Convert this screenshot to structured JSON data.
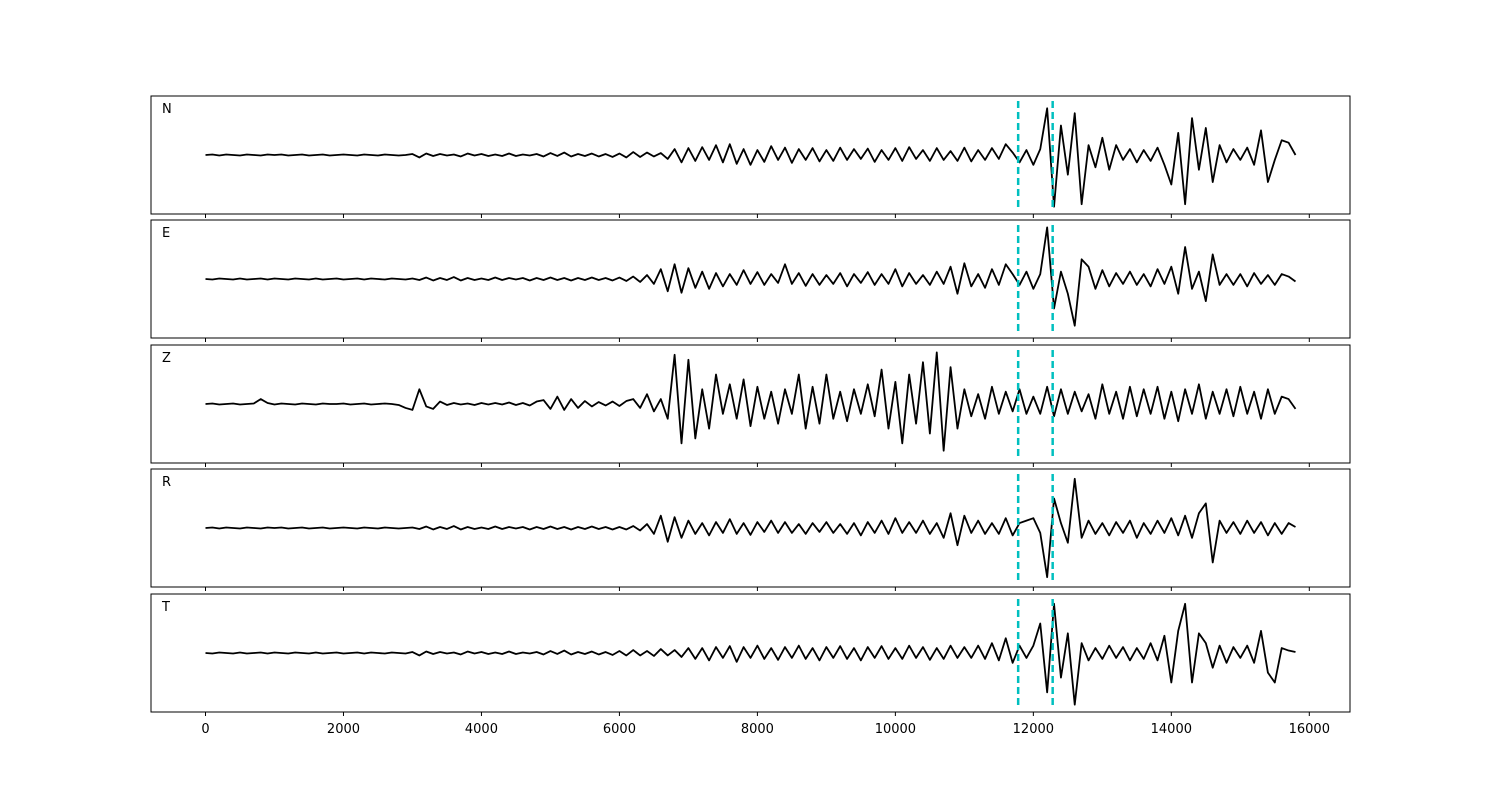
{
  "chart_data": {
    "type": "line",
    "x": [
      0,
      100,
      200,
      300,
      400,
      500,
      600,
      700,
      800,
      900,
      1000,
      1100,
      1200,
      1300,
      1400,
      1500,
      1600,
      1700,
      1800,
      1900,
      2000,
      2100,
      2200,
      2300,
      2400,
      2500,
      2600,
      2700,
      2800,
      2900,
      3000,
      3100,
      3200,
      3300,
      3400,
      3500,
      3600,
      3700,
      3800,
      3900,
      4000,
      4100,
      4200,
      4300,
      4400,
      4500,
      4600,
      4700,
      4800,
      4900,
      5000,
      5100,
      5200,
      5300,
      5400,
      5500,
      5600,
      5700,
      5800,
      5900,
      6000,
      6100,
      6200,
      6300,
      6400,
      6500,
      6600,
      6700,
      6800,
      6900,
      7000,
      7100,
      7200,
      7300,
      7400,
      7500,
      7600,
      7700,
      7800,
      7900,
      8000,
      8100,
      8200,
      8300,
      8400,
      8500,
      8600,
      8700,
      8800,
      8900,
      9000,
      9100,
      9200,
      9300,
      9400,
      9500,
      9600,
      9700,
      9800,
      9900,
      10000,
      10100,
      10200,
      10300,
      10400,
      10500,
      10600,
      10700,
      10800,
      10900,
      11000,
      11100,
      11200,
      11300,
      11400,
      11500,
      11600,
      11700,
      11800,
      11900,
      12000,
      12100,
      12200,
      12300,
      12400,
      12500,
      12600,
      12700,
      12800,
      12900,
      13000,
      13100,
      13200,
      13300,
      13400,
      13500,
      13600,
      13700,
      13800,
      13900,
      14000,
      14100,
      14200,
      14300,
      14400,
      14500,
      14600,
      14700,
      14800,
      14900,
      15000,
      15100,
      15200,
      15300,
      15400,
      15500,
      15600,
      15700,
      15800
    ],
    "series": [
      {
        "name": "N",
        "color": "#000000",
        "values": [
          0,
          0.01,
          -0.01,
          0.01,
          0,
          -0.01,
          0.01,
          0,
          -0.01,
          0.01,
          0,
          0.01,
          -0.01,
          0,
          0.01,
          -0.01,
          0,
          0.01,
          -0.01,
          0,
          0.01,
          0,
          -0.01,
          0.01,
          0,
          -0.01,
          0.01,
          0,
          -0.01,
          0,
          0.02,
          -0.05,
          0.03,
          -0.02,
          0.02,
          -0.01,
          0.01,
          -0.03,
          0.03,
          -0.01,
          0.02,
          -0.02,
          0.01,
          -0.02,
          0.03,
          -0.02,
          0.01,
          -0.01,
          0.02,
          -0.03,
          0.04,
          -0.02,
          0.05,
          -0.03,
          0.02,
          -0.02,
          0.03,
          -0.03,
          0.02,
          -0.04,
          0.03,
          -0.05,
          0.06,
          -0.04,
          0.05,
          -0.03,
          0.04,
          -0.08,
          0.12,
          -0.15,
          0.14,
          -0.12,
          0.16,
          -0.1,
          0.2,
          -0.15,
          0.22,
          -0.18,
          0.12,
          -0.2,
          0.1,
          -0.14,
          0.18,
          -0.1,
          0.15,
          -0.16,
          0.12,
          -0.1,
          0.14,
          -0.13,
          0.1,
          -0.12,
          0.15,
          -0.1,
          0.12,
          -0.08,
          0.13,
          -0.14,
          0.1,
          -0.1,
          0.14,
          -0.12,
          0.16,
          -0.08,
          0.1,
          -0.12,
          0.14,
          -0.1,
          0.08,
          -0.12,
          0.15,
          -0.13,
          0.1,
          -0.1,
          0.14,
          -0.08,
          0.22,
          0.05,
          -0.15,
          0.1,
          -0.2,
          0.12,
          0.95,
          -1.05,
          0.6,
          -0.4,
          0.85,
          -1.0,
          0.2,
          -0.25,
          0.35,
          -0.3,
          0.2,
          -0.1,
          0.12,
          -0.15,
          0.1,
          -0.12,
          0.15,
          -0.2,
          -0.6,
          0.45,
          -1.0,
          0.75,
          -0.3,
          0.55,
          -0.55,
          0.2,
          -0.15,
          0.12,
          -0.1,
          0.15,
          -0.2,
          0.5,
          -0.55,
          -0.1,
          0.3,
          0.25,
          0
        ]
      },
      {
        "name": "E",
        "color": "#000000",
        "values": [
          0,
          -0.01,
          0.01,
          0,
          -0.01,
          0.01,
          -0.01,
          0,
          0.01,
          -0.01,
          0.01,
          0,
          -0.01,
          0.01,
          0,
          -0.01,
          0.01,
          -0.01,
          0,
          0.01,
          -0.01,
          0,
          0.01,
          -0.01,
          0.01,
          0,
          -0.01,
          0.01,
          0,
          -0.01,
          0.01,
          -0.02,
          0.03,
          -0.03,
          0.02,
          -0.02,
          0.04,
          -0.03,
          0.02,
          -0.02,
          0.01,
          -0.02,
          0.03,
          -0.02,
          0.02,
          -0.01,
          0.02,
          -0.03,
          0.02,
          -0.02,
          0.03,
          -0.02,
          0.02,
          -0.03,
          0.02,
          -0.02,
          0.03,
          -0.02,
          0.02,
          -0.03,
          0.03,
          -0.04,
          0.05,
          -0.06,
          0.08,
          -0.1,
          0.2,
          -0.25,
          0.3,
          -0.28,
          0.22,
          -0.18,
          0.15,
          -0.2,
          0.12,
          -0.15,
          0.1,
          -0.12,
          0.18,
          -0.1,
          0.14,
          -0.12,
          0.1,
          -0.08,
          0.3,
          -0.1,
          0.12,
          -0.14,
          0.1,
          -0.12,
          0.08,
          -0.1,
          0.12,
          -0.15,
          0.1,
          -0.08,
          0.14,
          -0.12,
          0.1,
          -0.1,
          0.2,
          -0.15,
          0.12,
          -0.1,
          0.08,
          -0.12,
          0.15,
          -0.1,
          0.25,
          -0.3,
          0.32,
          -0.15,
          0.1,
          -0.18,
          0.2,
          -0.12,
          0.3,
          0.1,
          -0.12,
          0.15,
          -0.2,
          0.1,
          1.05,
          -0.6,
          0.15,
          -0.3,
          -0.95,
          0.4,
          0.25,
          -0.2,
          0.18,
          -0.15,
          0.12,
          -0.1,
          0.15,
          -0.12,
          0.1,
          -0.15,
          0.2,
          -0.1,
          0.25,
          -0.3,
          0.65,
          -0.2,
          0.15,
          -0.45,
          0.5,
          -0.12,
          0.1,
          -0.12,
          0.1,
          -0.15,
          0.12,
          -0.1,
          0.08,
          -0.12,
          0.1,
          0.05,
          -0.05
        ]
      },
      {
        "name": "Z",
        "color": "#000000",
        "values": [
          0,
          0.01,
          -0.01,
          0,
          0.01,
          -0.01,
          0,
          0.01,
          0.1,
          0.02,
          -0.01,
          0.01,
          0,
          -0.01,
          0.01,
          0,
          -0.01,
          0.01,
          0,
          0,
          0.01,
          -0.01,
          0,
          0.01,
          -0.01,
          0,
          0.01,
          0,
          -0.02,
          -0.08,
          -0.12,
          0.3,
          -0.05,
          -0.1,
          0.05,
          -0.02,
          0.02,
          -0.01,
          0.01,
          -0.02,
          0.02,
          -0.01,
          0.02,
          -0.01,
          0.03,
          -0.02,
          0.02,
          -0.03,
          0.05,
          0.08,
          -0.1,
          0.15,
          -0.12,
          0.1,
          -0.08,
          0.06,
          -0.05,
          0.04,
          -0.03,
          0.05,
          -0.04,
          0.06,
          0.1,
          -0.08,
          0.2,
          -0.15,
          0.1,
          -0.3,
          1.0,
          -0.8,
          0.9,
          -0.7,
          0.3,
          -0.5,
          0.6,
          -0.2,
          0.4,
          -0.3,
          0.5,
          -0.45,
          0.35,
          -0.3,
          0.25,
          -0.4,
          0.3,
          -0.2,
          0.6,
          -0.5,
          0.35,
          -0.4,
          0.6,
          -0.3,
          0.25,
          -0.35,
          0.3,
          -0.2,
          0.4,
          -0.25,
          0.7,
          -0.5,
          0.45,
          -0.8,
          0.6,
          -0.4,
          0.85,
          -0.6,
          1.05,
          -0.95,
          0.75,
          -0.5,
          0.3,
          -0.25,
          0.2,
          -0.3,
          0.35,
          -0.2,
          0.25,
          -0.15,
          0.3,
          -0.2,
          0.15,
          -0.2,
          0.35,
          -0.25,
          0.3,
          -0.2,
          0.25,
          -0.15,
          0.2,
          -0.3,
          0.4,
          -0.2,
          0.25,
          -0.3,
          0.35,
          -0.25,
          0.3,
          -0.2,
          0.35,
          -0.3,
          0.25,
          -0.35,
          0.3,
          -0.2,
          0.4,
          -0.3,
          0.25,
          -0.2,
          0.3,
          -0.25,
          0.35,
          -0.2,
          0.25,
          -0.3,
          0.3,
          -0.2,
          0.15,
          0.1,
          -0.1
        ]
      },
      {
        "name": "R",
        "color": "#000000",
        "values": [
          0,
          0.01,
          -0.01,
          0.01,
          0,
          -0.01,
          0.01,
          0,
          -0.01,
          0.01,
          0,
          0.01,
          -0.01,
          0,
          0.01,
          -0.01,
          0,
          0.01,
          -0.01,
          0,
          0.01,
          0,
          -0.01,
          0.01,
          0,
          -0.01,
          0.01,
          0,
          -0.01,
          0,
          0.01,
          -0.02,
          0.03,
          -0.03,
          0.02,
          -0.02,
          0.04,
          -0.03,
          0.02,
          -0.02,
          0.01,
          -0.02,
          0.03,
          -0.02,
          0.02,
          -0.01,
          0.02,
          -0.03,
          0.02,
          -0.02,
          0.03,
          -0.02,
          0.02,
          -0.03,
          0.02,
          -0.02,
          0.03,
          -0.02,
          0.02,
          -0.03,
          0.02,
          -0.03,
          0.04,
          -0.05,
          0.08,
          -0.12,
          0.25,
          -0.28,
          0.22,
          -0.2,
          0.15,
          -0.12,
          0.1,
          -0.15,
          0.12,
          -0.1,
          0.18,
          -0.12,
          0.1,
          -0.14,
          0.12,
          -0.08,
          0.15,
          -0.1,
          0.12,
          -0.1,
          0.08,
          -0.12,
          0.1,
          -0.08,
          0.12,
          -0.1,
          0.08,
          -0.12,
          0.1,
          -0.15,
          0.12,
          -0.1,
          0.15,
          -0.12,
          0.2,
          -0.1,
          0.12,
          -0.1,
          0.15,
          -0.12,
          0.1,
          -0.2,
          0.3,
          -0.35,
          0.25,
          -0.1,
          0.15,
          -0.12,
          0.1,
          -0.12,
          0.2,
          -0.15,
          0.1,
          0.15,
          0.2,
          -0.1,
          -1.0,
          0.6,
          0.1,
          -0.3,
          1.0,
          -0.2,
          0.15,
          -0.12,
          0.1,
          -0.15,
          0.12,
          -0.1,
          0.15,
          -0.2,
          0.1,
          -0.12,
          0.15,
          -0.1,
          0.2,
          -0.15,
          0.25,
          -0.2,
          0.3,
          0.5,
          -0.7,
          0.15,
          -0.1,
          0.12,
          -0.12,
          0.15,
          -0.1,
          0.12,
          -0.15,
          0.1,
          -0.12,
          0.1,
          0.02
        ]
      },
      {
        "name": "T",
        "color": "#000000",
        "values": [
          0,
          -0.01,
          0.01,
          0,
          -0.01,
          0.01,
          -0.01,
          0,
          0.01,
          -0.01,
          0.01,
          0,
          -0.01,
          0.01,
          0,
          -0.01,
          0.01,
          -0.01,
          0,
          0.01,
          -0.01,
          0,
          0.01,
          -0.01,
          0.01,
          0,
          -0.01,
          0.01,
          0,
          -0.01,
          0.02,
          -0.05,
          0.03,
          -0.02,
          0.02,
          -0.01,
          0.01,
          -0.03,
          0.03,
          -0.01,
          0.02,
          -0.02,
          0.01,
          -0.02,
          0.03,
          -0.02,
          0.01,
          -0.01,
          0.02,
          -0.03,
          0.04,
          -0.02,
          0.05,
          -0.03,
          0.02,
          -0.02,
          0.03,
          -0.03,
          0.02,
          -0.04,
          0.04,
          -0.05,
          0.06,
          -0.05,
          0.04,
          -0.06,
          0.08,
          -0.05,
          0.06,
          -0.08,
          0.1,
          -0.12,
          0.1,
          -0.15,
          0.12,
          -0.1,
          0.14,
          -0.18,
          0.12,
          -0.1,
          0.15,
          -0.12,
          0.1,
          -0.14,
          0.12,
          -0.1,
          0.15,
          -0.12,
          0.1,
          -0.15,
          0.12,
          -0.1,
          0.14,
          -0.12,
          0.1,
          -0.15,
          0.12,
          -0.1,
          0.14,
          -0.12,
          0.1,
          -0.12,
          0.15,
          -0.1,
          0.12,
          -0.14,
          0.1,
          -0.12,
          0.15,
          -0.1,
          0.12,
          -0.1,
          0.15,
          -0.12,
          0.2,
          -0.15,
          0.3,
          -0.2,
          0.15,
          -0.1,
          0.15,
          0.6,
          -0.8,
          1.0,
          -0.5,
          0.4,
          -1.05,
          0.2,
          -0.15,
          0.1,
          -0.12,
          0.15,
          -0.1,
          0.12,
          -0.15,
          0.1,
          -0.12,
          0.2,
          -0.15,
          0.35,
          -0.6,
          0.45,
          1.0,
          -0.6,
          0.4,
          0.2,
          -0.3,
          0.15,
          -0.2,
          0.12,
          -0.1,
          0.15,
          -0.2,
          0.45,
          -0.4,
          -0.6,
          0.1,
          0.05,
          0.02
        ]
      }
    ],
    "vlines": [
      11780,
      12280
    ],
    "vline_color": "#00bfbf",
    "xlim": [
      -790,
      16590
    ],
    "xticks": [
      0,
      2000,
      4000,
      6000,
      8000,
      10000,
      12000,
      14000,
      16000
    ],
    "ylim": [
      -1.2,
      1.2
    ]
  }
}
